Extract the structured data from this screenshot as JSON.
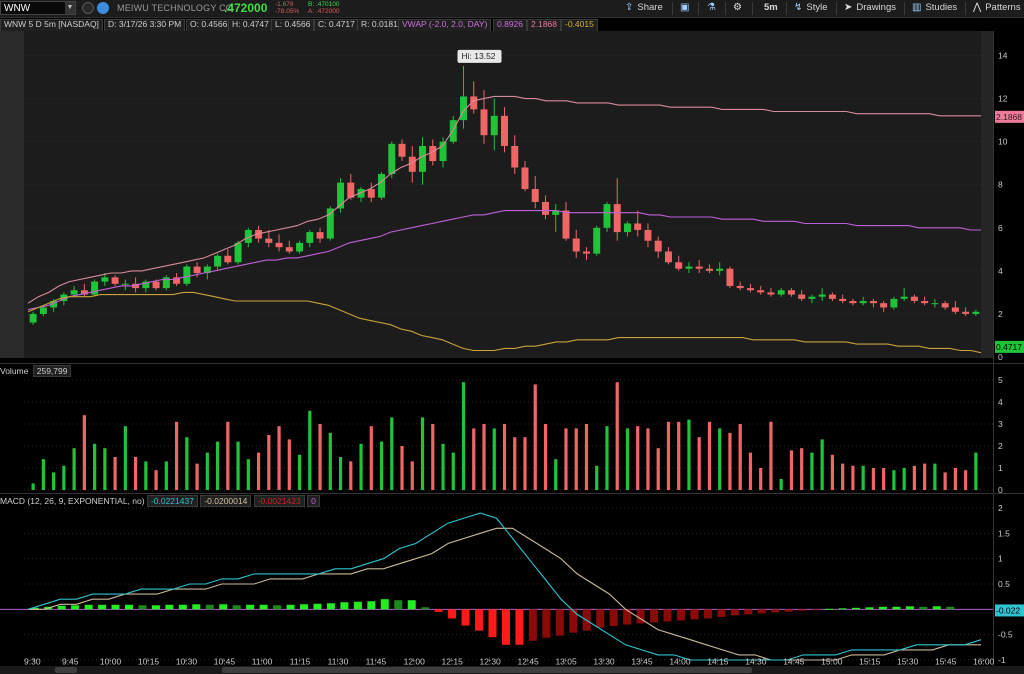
{
  "toolbar": {
    "symbol": "WNW",
    "company": "MEIWU TECHNOLOGY CO",
    "last_price": ".472000",
    "net_change": "-1.678",
    "pct_change": "-78.05%",
    "bid": "B: .470100",
    "ask": "A: .472000",
    "share": "Share",
    "timeframe": "5m",
    "style": "Style",
    "drawings": "Drawings",
    "studies": "Studies",
    "patterns": "Patterns"
  },
  "info": {
    "title": "WNW 5 D 5m [NASDAQ]",
    "date": "D: 3/17/26 3:30 PM",
    "open": "O: 0.4566",
    "high": "H: 0.4747",
    "low": "L: 0.4566",
    "close": "C: 0.4717",
    "range": "R: 0.0181",
    "vwap_label": "VWAP (-2.0, 2.0, DAY)",
    "vwap_val1": "0.8926",
    "vwap_val2": "2.1868",
    "vwap_val3": "-0.4015"
  },
  "volume_header": {
    "label": "Volume",
    "value": "259,799"
  },
  "macd_header": {
    "label": "MACD (12, 26, 9, EXPONENTIAL, no)",
    "value": "-0.0221437",
    "avg": "-0.0200014",
    "diff": "-0.0021423",
    "zero": "0"
  },
  "price_tags": {
    "upper": "2.1868",
    "last": "0.4717",
    "macd": "-0.022"
  },
  "hi_label": "Hi: 13.52",
  "colors": {
    "up": "#1fc43a",
    "down": "#f06666",
    "upper_band": "#d88a9a",
    "vwap": "#c060d8",
    "lower_band": "#c9a23a",
    "macd": "#2ec4d0",
    "avg": "#c8b898"
  },
  "chart_data": [
    {
      "type": "candlestick",
      "title": "WNW 5 D 5m [NASDAQ]",
      "ylim": [
        0,
        15
      ],
      "yticks": [
        0,
        2,
        4,
        6,
        8,
        10,
        12,
        14
      ],
      "time_labels": [
        "9:30",
        "9:45",
        "10:00",
        "10:15",
        "10:30",
        "10:45",
        "11:00",
        "11:15",
        "11:30",
        "11:45",
        "12:00",
        "12:15",
        "12:30",
        "12:45",
        "13:05",
        "13:30",
        "13:45",
        "14:00",
        "14:15",
        "14:30",
        "14:45",
        "15:00",
        "15:15",
        "15:30",
        "15:45",
        "16:00"
      ],
      "candles": [
        [
          1.6,
          2.1,
          1.5,
          2.0
        ],
        [
          2.0,
          2.4,
          1.9,
          2.3
        ],
        [
          2.3,
          2.7,
          2.1,
          2.6
        ],
        [
          2.6,
          3.0,
          2.4,
          2.9
        ],
        [
          2.9,
          3.3,
          2.8,
          3.1
        ],
        [
          3.1,
          3.4,
          2.8,
          2.9
        ],
        [
          2.9,
          3.6,
          2.8,
          3.5
        ],
        [
          3.5,
          3.9,
          3.3,
          3.7
        ],
        [
          3.7,
          3.8,
          3.3,
          3.4
        ],
        [
          3.4,
          3.6,
          3.1,
          3.4
        ],
        [
          3.4,
          3.7,
          3.0,
          3.2
        ],
        [
          3.2,
          3.6,
          3.0,
          3.5
        ],
        [
          3.5,
          3.6,
          3.1,
          3.2
        ],
        [
          3.2,
          3.8,
          3.1,
          3.7
        ],
        [
          3.7,
          3.9,
          3.3,
          3.4
        ],
        [
          3.4,
          4.3,
          3.3,
          4.2
        ],
        [
          4.2,
          4.4,
          3.7,
          3.9
        ],
        [
          3.9,
          4.3,
          3.6,
          4.2
        ],
        [
          4.2,
          4.8,
          4.0,
          4.7
        ],
        [
          4.7,
          5.0,
          4.3,
          4.4
        ],
        [
          4.4,
          5.4,
          4.3,
          5.3
        ],
        [
          5.3,
          6.0,
          5.1,
          5.9
        ],
        [
          5.9,
          6.1,
          5.3,
          5.5
        ],
        [
          5.5,
          5.9,
          5.1,
          5.3
        ],
        [
          5.3,
          5.7,
          4.9,
          5.1
        ],
        [
          5.1,
          5.4,
          4.8,
          4.9
        ],
        [
          4.9,
          5.4,
          4.8,
          5.3
        ],
        [
          5.3,
          5.9,
          5.1,
          5.8
        ],
        [
          5.8,
          6.0,
          5.3,
          5.5
        ],
        [
          5.5,
          7.0,
          5.4,
          6.9
        ],
        [
          6.9,
          8.3,
          6.7,
          8.1
        ],
        [
          8.1,
          8.5,
          7.3,
          7.4
        ],
        [
          7.4,
          7.9,
          7.2,
          7.8
        ],
        [
          7.8,
          8.1,
          7.2,
          7.4
        ],
        [
          7.4,
          8.6,
          7.3,
          8.5
        ],
        [
          8.5,
          10.0,
          8.3,
          9.9
        ],
        [
          9.9,
          10.1,
          9.1,
          9.3
        ],
        [
          9.3,
          9.8,
          8.1,
          8.6
        ],
        [
          8.6,
          10.2,
          8.0,
          9.8
        ],
        [
          9.8,
          10.1,
          8.9,
          9.1
        ],
        [
          9.1,
          10.2,
          8.8,
          10.0
        ],
        [
          10.0,
          11.2,
          9.9,
          11.0
        ],
        [
          11.0,
          13.52,
          10.6,
          12.1
        ],
        [
          12.1,
          12.8,
          11.3,
          11.5
        ],
        [
          11.5,
          12.4,
          9.9,
          10.3
        ],
        [
          10.3,
          12.0,
          9.6,
          11.2
        ],
        [
          11.2,
          11.6,
          9.5,
          9.8
        ],
        [
          9.8,
          10.3,
          8.5,
          8.8
        ],
        [
          8.8,
          9.1,
          7.7,
          7.8
        ],
        [
          7.8,
          8.4,
          6.9,
          7.2
        ],
        [
          7.2,
          7.5,
          6.4,
          6.6
        ],
        [
          6.6,
          7.1,
          5.8,
          6.8
        ],
        [
          6.8,
          7.2,
          5.4,
          5.5
        ],
        [
          5.5,
          5.9,
          4.6,
          4.9
        ],
        [
          4.9,
          5.1,
          4.5,
          4.8
        ],
        [
          4.8,
          6.1,
          4.7,
          6.0
        ],
        [
          6.0,
          7.2,
          5.8,
          7.1
        ],
        [
          7.1,
          8.3,
          5.4,
          5.8
        ],
        [
          5.8,
          6.3,
          5.6,
          6.2
        ],
        [
          6.2,
          6.8,
          5.6,
          5.9
        ],
        [
          5.9,
          6.2,
          5.1,
          5.4
        ],
        [
          5.4,
          5.6,
          4.6,
          4.9
        ],
        [
          4.9,
          5.1,
          4.3,
          4.4
        ],
        [
          4.4,
          4.7,
          4.0,
          4.1
        ],
        [
          4.1,
          4.4,
          3.9,
          4.2
        ],
        [
          4.2,
          4.5,
          3.9,
          4.1
        ],
        [
          4.1,
          4.3,
          3.9,
          4.0
        ],
        [
          4.0,
          4.4,
          3.8,
          4.1
        ],
        [
          4.1,
          4.2,
          3.2,
          3.3
        ],
        [
          3.3,
          3.5,
          3.1,
          3.2
        ],
        [
          3.2,
          3.4,
          3.0,
          3.1
        ],
        [
          3.1,
          3.3,
          2.9,
          3.0
        ],
        [
          3.0,
          3.2,
          2.8,
          2.9
        ],
        [
          2.9,
          3.2,
          2.8,
          3.1
        ],
        [
          3.1,
          3.2,
          2.8,
          2.9
        ],
        [
          2.9,
          3.1,
          2.6,
          2.7
        ],
        [
          2.7,
          2.9,
          2.5,
          2.8
        ],
        [
          2.8,
          3.2,
          2.6,
          2.9
        ],
        [
          2.9,
          3.0,
          2.6,
          2.7
        ],
        [
          2.7,
          2.9,
          2.5,
          2.6
        ],
        [
          2.6,
          2.7,
          2.4,
          2.5
        ],
        [
          2.5,
          2.8,
          2.4,
          2.6
        ],
        [
          2.6,
          2.7,
          2.3,
          2.5
        ],
        [
          2.5,
          2.6,
          2.1,
          2.3
        ],
        [
          2.3,
          2.8,
          2.2,
          2.7
        ],
        [
          2.7,
          3.2,
          2.6,
          2.8
        ],
        [
          2.8,
          2.9,
          2.5,
          2.6
        ],
        [
          2.6,
          2.8,
          2.4,
          2.5
        ],
        [
          2.5,
          2.7,
          2.3,
          2.5
        ],
        [
          2.5,
          2.6,
          2.2,
          2.3
        ],
        [
          2.3,
          2.6,
          2.0,
          2.1
        ],
        [
          2.1,
          2.3,
          1.9,
          2.0
        ],
        [
          2.0,
          2.2,
          1.9,
          2.1
        ]
      ],
      "vwap": [
        2.2,
        2.3,
        2.4,
        2.6,
        2.8,
        2.9,
        3.0,
        3.1,
        3.2,
        3.3,
        3.3,
        3.4,
        3.5,
        3.6,
        3.6,
        3.7,
        3.8,
        3.9,
        4.0,
        4.1,
        4.2,
        4.3,
        4.4,
        4.5,
        4.5,
        4.6,
        4.6,
        4.7,
        4.8,
        4.9,
        5.1,
        5.3,
        5.4,
        5.5,
        5.6,
        5.8,
        5.9,
        6.0,
        6.1,
        6.2,
        6.3,
        6.4,
        6.5,
        6.6,
        6.6,
        6.7,
        6.8,
        6.8,
        6.8,
        6.8,
        6.8,
        6.8,
        6.7,
        6.7,
        6.7,
        6.7,
        6.7,
        6.7,
        6.7,
        6.7,
        6.6,
        6.6,
        6.5,
        6.5,
        6.5,
        6.5,
        6.5,
        6.4,
        6.4,
        6.4,
        6.4,
        6.3,
        6.3,
        6.3,
        6.3,
        6.2,
        6.2,
        6.2,
        6.2,
        6.2,
        6.1,
        6.1,
        6.1,
        6.1,
        6.1,
        6.1,
        6.0,
        6.0,
        6.0,
        6.0,
        6.0,
        5.9,
        5.9
      ],
      "upper_band": [
        2.5,
        2.8,
        3.0,
        3.3,
        3.5,
        3.6,
        3.7,
        3.8,
        3.9,
        3.9,
        4.0,
        4.0,
        4.1,
        4.2,
        4.3,
        4.4,
        4.5,
        4.6,
        4.8,
        5.0,
        5.2,
        5.5,
        5.7,
        5.8,
        5.9,
        6.0,
        6.1,
        6.3,
        6.4,
        6.6,
        7.0,
        7.4,
        7.6,
        7.8,
        8.1,
        8.5,
        8.8,
        9.0,
        9.3,
        9.5,
        9.8,
        10.5,
        11.4,
        11.9,
        12.0,
        12.1,
        12.1,
        12.1,
        12.0,
        12.0,
        11.9,
        11.9,
        11.9,
        11.8,
        11.8,
        11.8,
        11.8,
        11.7,
        11.7,
        11.7,
        11.7,
        11.7,
        11.6,
        11.6,
        11.6,
        11.6,
        11.6,
        11.5,
        11.5,
        11.5,
        11.5,
        11.5,
        11.4,
        11.4,
        11.4,
        11.4,
        11.4,
        11.4,
        11.4,
        11.4,
        11.3,
        11.3,
        11.3,
        11.3,
        11.3,
        11.3,
        11.3,
        11.3,
        11.2,
        11.2,
        11.2,
        11.2,
        11.2
      ],
      "lower_band": [
        2.1,
        2.3,
        2.5,
        2.7,
        2.8,
        2.8,
        2.8,
        2.9,
        2.9,
        2.9,
        2.9,
        2.9,
        2.9,
        2.9,
        2.9,
        3.0,
        3.0,
        2.9,
        2.8,
        2.7,
        2.6,
        2.6,
        2.6,
        2.6,
        2.6,
        2.6,
        2.6,
        2.6,
        2.5,
        2.4,
        2.2,
        2.0,
        1.8,
        1.7,
        1.6,
        1.5,
        1.3,
        1.2,
        1.0,
        0.9,
        0.8,
        0.6,
        0.4,
        0.3,
        0.3,
        0.3,
        0.4,
        0.4,
        0.5,
        0.5,
        0.6,
        0.7,
        0.7,
        0.8,
        0.8,
        0.8,
        0.8,
        0.9,
        0.9,
        0.9,
        0.9,
        0.9,
        0.9,
        0.9,
        0.9,
        0.9,
        0.9,
        0.9,
        0.9,
        0.9,
        0.8,
        0.8,
        0.8,
        0.8,
        0.8,
        0.7,
        0.7,
        0.7,
        0.7,
        0.7,
        0.6,
        0.6,
        0.6,
        0.6,
        0.5,
        0.5,
        0.5,
        0.4,
        0.4,
        0.4,
        0.3,
        0.3,
        0.2
      ]
    },
    {
      "type": "bar",
      "title": "Volume",
      "ylim": [
        0,
        5
      ],
      "yticks": [
        0,
        1,
        2,
        3,
        4,
        5
      ],
      "values": [
        0.3,
        1.4,
        0.8,
        1.1,
        1.9,
        3.4,
        2.1,
        1.9,
        1.5,
        2.9,
        1.5,
        1.3,
        0.9,
        1.3,
        3.1,
        2.4,
        1.2,
        1.7,
        2.2,
        3.1,
        2.2,
        1.4,
        1.7,
        2.5,
        2.9,
        2.3,
        1.6,
        3.6,
        3.0,
        2.6,
        1.5,
        1.3,
        2.1,
        2.9,
        2.2,
        3.3,
        2.0,
        1.3,
        3.3,
        3.0,
        2.1,
        1.7,
        4.9,
        2.8,
        3.0,
        2.8,
        3.0,
        2.4,
        2.4,
        4.8,
        3.0,
        1.4,
        2.8,
        2.8,
        3.0,
        1.1,
        2.9,
        4.9,
        2.8,
        2.9,
        2.8,
        1.9,
        3.1,
        3.1,
        3.2,
        2.4,
        3.1,
        2.8,
        2.6,
        3.0,
        1.7,
        1.0,
        3.1,
        0.5,
        1.8,
        1.9,
        1.7,
        2.3,
        1.6,
        1.2,
        1.1,
        1.1,
        1.0,
        1.0,
        0.9,
        1.0,
        1.1,
        1.2,
        1.2,
        0.8,
        1.0,
        0.9,
        1.7
      ]
    },
    {
      "type": "line",
      "title": "MACD (12, 26, 9, EXPONENTIAL, no)",
      "ylim": [
        -1,
        2
      ],
      "yticks": [
        -1,
        -0.5,
        0,
        0.5,
        1,
        1.5,
        2
      ],
      "x_labels": [
        "9:30",
        "9:45",
        "10:00",
        "10:15",
        "10:30",
        "10:45",
        "11:00",
        "11:15",
        "11:30",
        "11:45",
        "12:00",
        "12:15",
        "12:30",
        "12:45",
        "13:05",
        "13:30",
        "13:45",
        "14:00",
        "14:15",
        "14:30",
        "14:45",
        "15:00",
        "15:15",
        "15:30",
        "15:45",
        "16:00"
      ],
      "series": [
        {
          "name": "MACD",
          "values": [
            0.0,
            0.1,
            0.2,
            0.2,
            0.3,
            0.3,
            0.3,
            0.4,
            0.4,
            0.4,
            0.5,
            0.5,
            0.6,
            0.6,
            0.7,
            0.7,
            0.7,
            0.7,
            0.7,
            0.8,
            0.8,
            0.9,
            1.0,
            1.2,
            1.3,
            1.5,
            1.7,
            1.8,
            1.9,
            1.8,
            1.4,
            1.0,
            0.6,
            0.2,
            -0.1,
            -0.3,
            -0.5,
            -0.7,
            -0.8,
            -0.9,
            -0.9,
            -1.0,
            -1.0,
            -1.0,
            -1.0,
            -1.0,
            -1.0,
            -1.0,
            -0.9,
            -0.9,
            -0.9,
            -0.8,
            -0.8,
            -0.8,
            -0.8,
            -0.7,
            -0.7,
            -0.7,
            -0.7,
            -0.6
          ]
        },
        {
          "name": "Avg",
          "values": [
            0.0,
            0.0,
            0.1,
            0.1,
            0.2,
            0.2,
            0.3,
            0.3,
            0.3,
            0.4,
            0.4,
            0.4,
            0.5,
            0.5,
            0.5,
            0.6,
            0.6,
            0.6,
            0.7,
            0.7,
            0.7,
            0.8,
            0.8,
            0.9,
            1.0,
            1.1,
            1.3,
            1.4,
            1.5,
            1.6,
            1.6,
            1.4,
            1.2,
            1.0,
            0.7,
            0.5,
            0.3,
            0.0,
            -0.2,
            -0.4,
            -0.5,
            -0.6,
            -0.7,
            -0.8,
            -0.9,
            -0.9,
            -1.0,
            -1.0,
            -1.0,
            -1.0,
            -1.0,
            -0.9,
            -0.9,
            -0.9,
            -0.8,
            -0.8,
            -0.8,
            -0.7,
            -0.7,
            -0.7
          ]
        },
        {
          "name": "Diff",
          "values": [
            0.03,
            0.05,
            0.07,
            0.08,
            0.09,
            0.09,
            0.09,
            0.09,
            0.08,
            0.08,
            0.09,
            0.09,
            0.1,
            0.09,
            0.1,
            0.08,
            0.09,
            0.09,
            0.08,
            0.09,
            0.1,
            0.11,
            0.12,
            0.14,
            0.15,
            0.16,
            0.2,
            0.18,
            0.18,
            0.04,
            -0.05,
            -0.18,
            -0.32,
            -0.42,
            -0.55,
            -0.7,
            -0.7,
            -0.62,
            -0.56,
            -0.52,
            -0.46,
            -0.42,
            -0.36,
            -0.33,
            -0.3,
            -0.28,
            -0.26,
            -0.24,
            -0.22,
            -0.2,
            -0.18,
            -0.15,
            -0.12,
            -0.1,
            -0.08,
            -0.06,
            -0.05,
            -0.03,
            -0.01,
            0.01,
            0.02,
            0.03,
            0.04,
            0.05,
            0.05,
            0.06,
            0.05,
            0.06,
            0.05
          ]
        }
      ]
    }
  ]
}
